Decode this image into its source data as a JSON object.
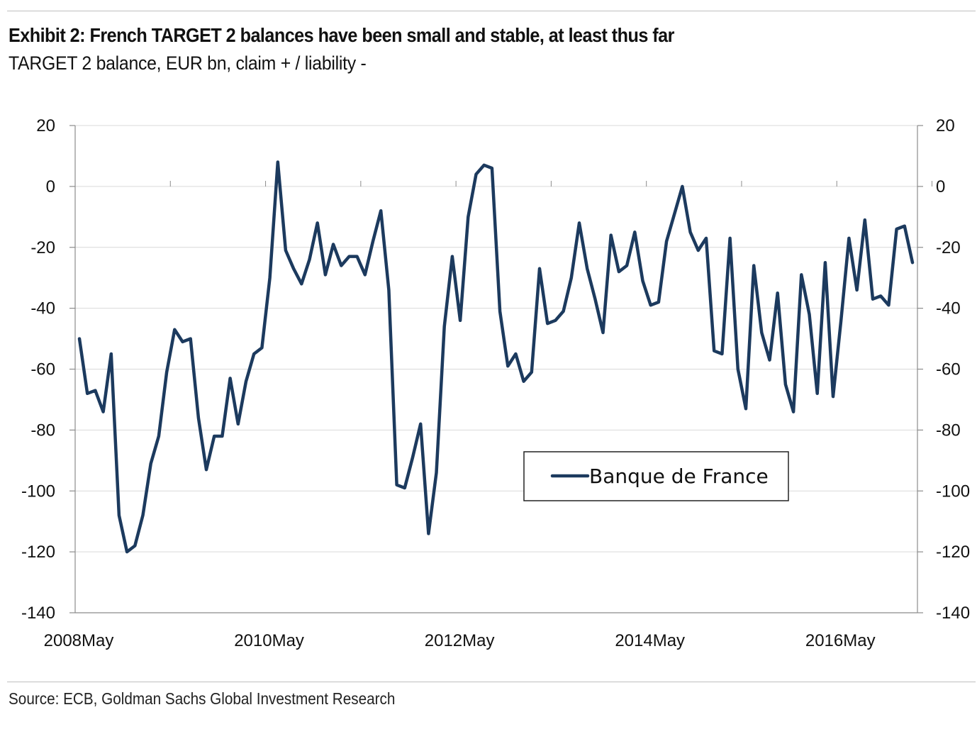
{
  "header": {
    "title": "Exhibit 2: French TARGET 2 balances have been small and stable, at least thus far",
    "subtitle": "TARGET 2 balance, EUR bn, claim + / liability -"
  },
  "footer": {
    "source": "Source: ECB, Goldman Sachs Global Investment Research"
  },
  "colors": {
    "series": "#1c3a5e",
    "grid": "#d9d9d9",
    "axis": "#8c8c8c"
  },
  "chart_data": {
    "type": "line",
    "title": "Exhibit 2: French TARGET 2 balances have been small and stable, at least thus far",
    "subtitle": "TARGET 2 balance, EUR bn, claim + / liability -",
    "xlabel": "",
    "ylabel": "",
    "x_start": "2008-05",
    "x_step": "monthly",
    "xlim": [
      "2008-05",
      "2017-05"
    ],
    "x_ticks": [
      "2008May",
      "2010May",
      "2012May",
      "2014May",
      "2016May"
    ],
    "ylim": [
      -140,
      20
    ],
    "y_ticks": [
      20,
      0,
      -20,
      -40,
      -60,
      -80,
      -100,
      -120,
      -140
    ],
    "y_axes": [
      "left",
      "right"
    ],
    "grid": "horizontal",
    "legend": "center-right",
    "series": [
      {
        "name": "Banque de France",
        "values": [
          -50,
          -68,
          -67,
          -74,
          -55,
          -108,
          -120,
          -118,
          -108,
          -91,
          -82,
          -61,
          -47,
          -51,
          -50,
          -76,
          -93,
          -82,
          -82,
          -63,
          -78,
          -64,
          -55,
          -53,
          -30,
          8,
          -21,
          -27,
          -32,
          -24,
          -12,
          -29,
          -19,
          -26,
          -23,
          -23,
          -29,
          -18,
          -8,
          -34,
          -98,
          -99,
          -89,
          -78,
          -114,
          -94,
          -46,
          -23,
          -44,
          -10,
          4,
          7,
          6,
          -41,
          -59,
          -55,
          -64,
          -61,
          -27,
          -45,
          -44,
          -41,
          -30,
          -12,
          -27,
          -37,
          -48,
          -16,
          -28,
          -26,
          -15,
          -31,
          -39,
          -38,
          -18,
          -9,
          0,
          -15,
          -21,
          -17,
          -54,
          -55,
          -17,
          -60,
          -73,
          -26,
          -48,
          -57,
          -35,
          -65,
          -74,
          -29,
          -42,
          -68,
          -25,
          -69,
          -44,
          -17,
          -34,
          -11,
          -37,
          -36,
          -39,
          -14,
          -13,
          -25
        ]
      }
    ]
  }
}
